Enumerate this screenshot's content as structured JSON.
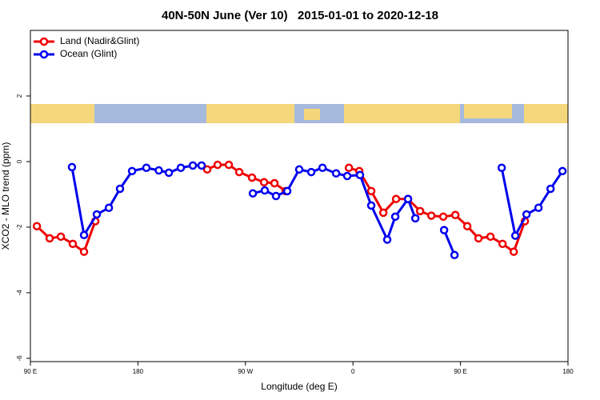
{
  "chart_data": {
    "type": "line",
    "title": "40N-50N June (Ver 10)   2015-01-01 to 2020-12-18",
    "x_label": "Longitude (deg E)",
    "y_label": "XCO2 - MLO trend (ppm)",
    "xlim": [
      90,
      540
    ],
    "xticks": [
      {
        "value": 90,
        "label": "90 E"
      },
      180,
      {
        "value": 270,
        "label": "90 W"
      },
      {
        "value": 360,
        "label": "0"
      },
      {
        "value": 450,
        "label": "90 E"
      },
      {
        "value": 540,
        "label": "180"
      }
    ],
    "ylim": [
      -6.1,
      4
    ],
    "yticks": [
      2,
      0,
      -2,
      -4,
      -6
    ],
    "legend": "top-left",
    "series": [
      {
        "name": "Land (Nadir&Glint)",
        "color": "#ee0000",
        "x": [
          95.4,
          106.1,
          115.5,
          125.5,
          134.9,
          144.3,
          null,
          238.0,
          246.7,
          256.1,
          264.8,
          275.5,
          285.6,
          294.3,
          303.7,
          null,
          356.6,
          365.3,
          375.3,
          385.4,
          396.1,
          406.1,
          416.2,
          425.6,
          435.6,
          445.7,
          455.7,
          465.1,
          475.1,
          485.2,
          494.6,
          503.9
        ],
        "values": [
          -1.97,
          -2.34,
          -2.29,
          -2.51,
          -2.75,
          -1.82,
          null,
          -0.24,
          -0.1,
          -0.1,
          -0.32,
          -0.49,
          -0.63,
          -0.66,
          -0.9,
          null,
          -0.19,
          -0.29,
          -0.9,
          -1.56,
          -1.14,
          -1.14,
          -1.51,
          -1.65,
          -1.68,
          -1.63,
          -1.97,
          -2.34,
          -2.29,
          -2.51,
          -2.75,
          -1.82
        ]
      },
      {
        "name": "Ocean (Glint)",
        "color": "#0000ee",
        "x": [
          124.8,
          134.9,
          145.6,
          155.7,
          165.0,
          175.1,
          187.1,
          197.5,
          205.9,
          215.9,
          226.0,
          233.3,
          null,
          276.2,
          286.2,
          295.6,
          305.0,
          315.0,
          325.1,
          334.5,
          345.9,
          355.2,
          365.9,
          375.3,
          388.7,
          395.4,
          406.1,
          412.2,
          null,
          436.3,
          445.0,
          null,
          484.5,
          495.9,
          505.3,
          515.3,
          525.4,
          535.4
        ],
        "values": [
          -0.17,
          -2.24,
          -1.61,
          -1.41,
          -0.83,
          -0.29,
          -0.19,
          -0.27,
          -0.34,
          -0.19,
          -0.12,
          -0.12,
          null,
          -0.97,
          -0.88,
          -1.05,
          -0.9,
          -0.24,
          -0.32,
          -0.19,
          -0.36,
          -0.44,
          -0.41,
          -1.34,
          -2.38,
          -1.68,
          -1.14,
          -1.73,
          null,
          -2.09,
          -2.85,
          null,
          -0.19,
          -2.26,
          -1.61,
          -1.41,
          -0.83,
          -0.29
        ]
      }
    ]
  }
}
